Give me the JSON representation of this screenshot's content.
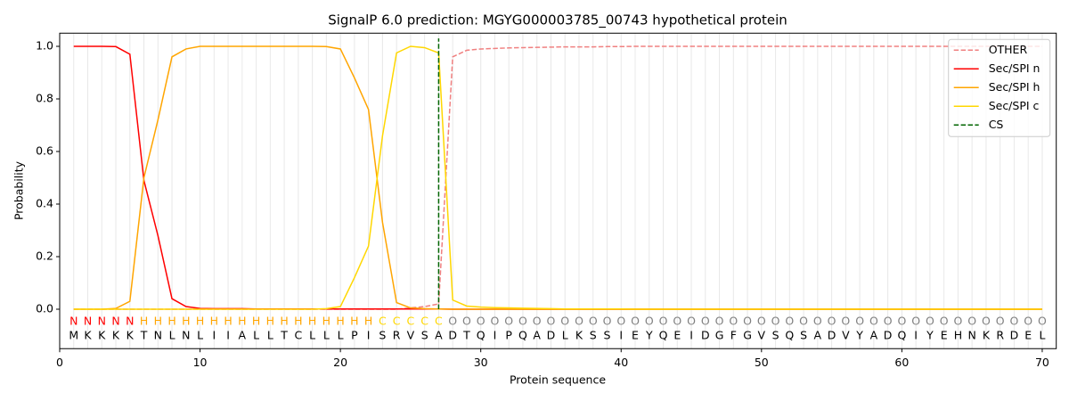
{
  "chart_data": {
    "type": "line",
    "title": "SignalP 6.0 prediction: MGYG000003785_00743 hypothetical protein",
    "xlabel": "Protein sequence",
    "ylabel": "Probability",
    "x": [
      1,
      2,
      3,
      4,
      5,
      6,
      7,
      8,
      9,
      10,
      11,
      12,
      13,
      14,
      15,
      16,
      17,
      18,
      19,
      20,
      21,
      22,
      23,
      24,
      25,
      26,
      27,
      28,
      29,
      30,
      31,
      32,
      33,
      34,
      35,
      36,
      37,
      38,
      39,
      40,
      41,
      42,
      43,
      44,
      45,
      46,
      47,
      48,
      49,
      50,
      51,
      52,
      53,
      54,
      55,
      56,
      57,
      58,
      59,
      60,
      61,
      62,
      63,
      64,
      65,
      66,
      67,
      68,
      69,
      70
    ],
    "residues": [
      "M",
      "K",
      "K",
      "K",
      "K",
      "T",
      "N",
      "L",
      "N",
      "L",
      "I",
      "I",
      "A",
      "L",
      "L",
      "T",
      "C",
      "L",
      "L",
      "L",
      "P",
      "I",
      "S",
      "R",
      "V",
      "S",
      "A",
      "D",
      "T",
      "Q",
      "I",
      "P",
      "Q",
      "A",
      "D",
      "L",
      "K",
      "S",
      "S",
      "I",
      "E",
      "Y",
      "Q",
      "E",
      "I",
      "D",
      "G",
      "F",
      "G",
      "V",
      "S",
      "Q",
      "S",
      "A",
      "D",
      "V",
      "Y",
      "A",
      "D",
      "Q",
      "I",
      "Y",
      "E",
      "H",
      "N",
      "K",
      "R",
      "D",
      "E",
      "L"
    ],
    "labels": [
      "N",
      "N",
      "N",
      "N",
      "N",
      "H",
      "H",
      "H",
      "H",
      "H",
      "H",
      "H",
      "H",
      "H",
      "H",
      "H",
      "H",
      "H",
      "H",
      "H",
      "H",
      "H",
      "C",
      "C",
      "C",
      "C",
      "C",
      "O",
      "O",
      "O",
      "O",
      "O",
      "O",
      "O",
      "O",
      "O",
      "O",
      "O",
      "O",
      "O",
      "O",
      "O",
      "O",
      "O",
      "O",
      "O",
      "O",
      "O",
      "O",
      "O",
      "O",
      "O",
      "O",
      "O",
      "O",
      "O",
      "O",
      "O",
      "O",
      "O",
      "O",
      "O",
      "O",
      "O",
      "O",
      "O",
      "O",
      "O",
      "O",
      "O"
    ],
    "label_colors": {
      "N": "#ff0000",
      "H": "#ffa500",
      "C": "#ffd700",
      "O": "#808080"
    },
    "series": [
      {
        "name": "OTHER",
        "color": "#f08080",
        "dash": true,
        "values": [
          0,
          0,
          0,
          0,
          0,
          0,
          0,
          0,
          0,
          0,
          0,
          0,
          0,
          0,
          0,
          0,
          0,
          0,
          0,
          0,
          0,
          0,
          0,
          0,
          0.005,
          0.01,
          0.02,
          0.96,
          0.985,
          0.99,
          0.992,
          0.994,
          0.995,
          0.996,
          0.997,
          0.998,
          0.998,
          0.998,
          0.999,
          0.999,
          1,
          1,
          1,
          1,
          1,
          1,
          1,
          1,
          1,
          1,
          1,
          1,
          1,
          1,
          1,
          1,
          1,
          1,
          1,
          1,
          1,
          1,
          1,
          1,
          1,
          1,
          1,
          1,
          1,
          1
        ]
      },
      {
        "name": "Sec/SPI n",
        "color": "#ff0000",
        "dash": false,
        "values": [
          1,
          1,
          1,
          0.999,
          0.97,
          0.49,
          0.28,
          0.04,
          0.01,
          0.003,
          0.002,
          0.002,
          0.002,
          0.001,
          0.001,
          0.001,
          0.001,
          0.001,
          0.001,
          0.001,
          0.001,
          0.001,
          0.001,
          0.001,
          0.001,
          0.001,
          0.001,
          0,
          0,
          0,
          0,
          0,
          0,
          0,
          0,
          0,
          0,
          0,
          0,
          0,
          0,
          0,
          0,
          0,
          0,
          0,
          0,
          0,
          0,
          0,
          0,
          0,
          0,
          0,
          0,
          0,
          0,
          0,
          0,
          0,
          0,
          0,
          0,
          0,
          0,
          0,
          0,
          0,
          0,
          0
        ]
      },
      {
        "name": "Sec/SPI h",
        "color": "#ffa500",
        "dash": false,
        "values": [
          0,
          0,
          0,
          0.003,
          0.03,
          0.5,
          0.72,
          0.96,
          0.99,
          1,
          1,
          1,
          1,
          1,
          1,
          1,
          1,
          1,
          0.999,
          0.99,
          0.88,
          0.76,
          0.33,
          0.025,
          0.005,
          0.002,
          0.001,
          0,
          0,
          0,
          0,
          0,
          0,
          0,
          0,
          0,
          0,
          0,
          0,
          0,
          0,
          0,
          0,
          0,
          0,
          0,
          0,
          0,
          0,
          0,
          0,
          0,
          0,
          0,
          0,
          0,
          0,
          0,
          0,
          0,
          0,
          0,
          0,
          0,
          0,
          0,
          0,
          0,
          0,
          0
        ]
      },
      {
        "name": "Sec/SPI c",
        "color": "#ffd700",
        "dash": false,
        "values": [
          0,
          0,
          0,
          0,
          0,
          0,
          0,
          0,
          0,
          0,
          0,
          0,
          0,
          0,
          0,
          0,
          0,
          0,
          0.002,
          0.01,
          0.12,
          0.24,
          0.66,
          0.975,
          1,
          0.995,
          0.975,
          0.035,
          0.012,
          0.008,
          0.006,
          0.005,
          0.004,
          0.003,
          0.002,
          0.001,
          0.001,
          0.001,
          0.001,
          0.001,
          0,
          0,
          0,
          0,
          0,
          0,
          0,
          0,
          0,
          0,
          0,
          0,
          0,
          0,
          0,
          0,
          0,
          0,
          0,
          0,
          0,
          0,
          0,
          0,
          0,
          0,
          0,
          0,
          0,
          0
        ]
      }
    ],
    "cs": {
      "name": "CS",
      "x": 27,
      "color": "#006400"
    },
    "xlim": [
      0,
      71
    ],
    "xticks": [
      0,
      10,
      20,
      30,
      40,
      50,
      60,
      70
    ],
    "ylim": [
      -0.15,
      1.05
    ],
    "yticks": [
      {
        "value": 0,
        "label": "0.0"
      },
      0.2,
      0.4,
      0.6,
      0.8,
      {
        "value": 1,
        "label": "1.0"
      }
    ],
    "legend": "upper right"
  }
}
